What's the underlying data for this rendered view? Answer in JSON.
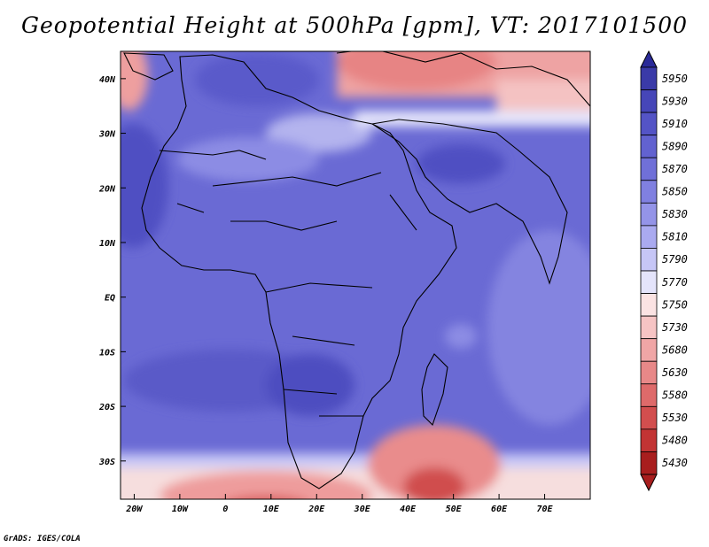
{
  "title": "Geopotential Height at 500hPa [gpm], VT: 2017101500",
  "credit": "GrADS: IGES/COLA",
  "map": {
    "variable": "Geopotential Height at 500hPa",
    "units": "gpm",
    "valid_time": "2017101500",
    "lon_range": [
      -23,
      80
    ],
    "lat_range": [
      -37,
      45
    ],
    "lon_ticks": [
      "20W",
      "10W",
      "0",
      "10E",
      "20E",
      "30E",
      "40E",
      "50E",
      "60E",
      "70E"
    ],
    "lat_ticks": [
      "40N",
      "30N",
      "20N",
      "10N",
      "EQ",
      "10S",
      "20S",
      "30S"
    ]
  },
  "colorbar": {
    "labels": [
      "5950",
      "5930",
      "5910",
      "5890",
      "5870",
      "5850",
      "5830",
      "5810",
      "5790",
      "5770",
      "5750",
      "5730",
      "5680",
      "5630",
      "5580",
      "5530",
      "5480",
      "5430"
    ],
    "colors": [
      "#3a3aa8",
      "#4646b8",
      "#5454c6",
      "#6262d0",
      "#7070d8",
      "#8080e0",
      "#9494e8",
      "#aaaaf0",
      "#c6c6f6",
      "#e4e4fb",
      "#fbe3e3",
      "#f6c4c4",
      "#f0a6a6",
      "#e88888",
      "#de6a6a",
      "#d24e4e",
      "#c23434",
      "#a81e1e"
    ],
    "top_arrow_color": "#2a2a98",
    "bottom_arrow_color": "#a81e1e"
  }
}
